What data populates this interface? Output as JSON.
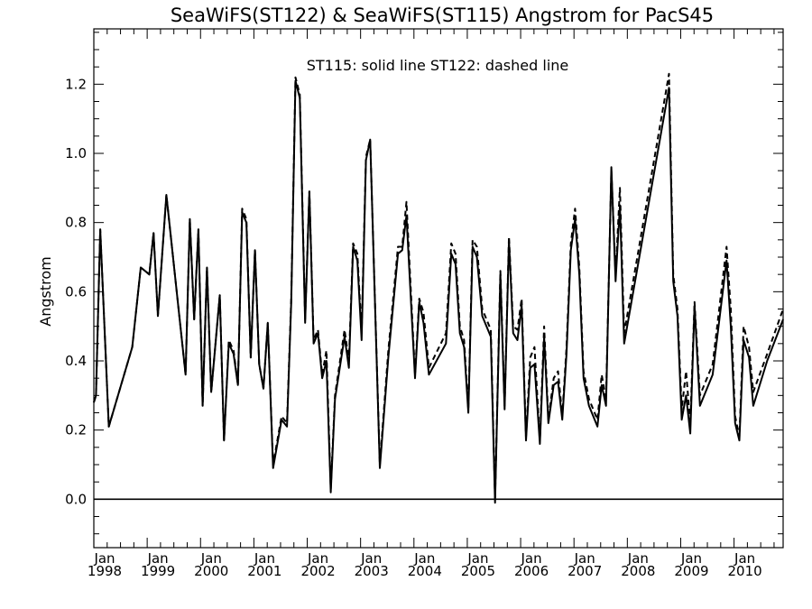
{
  "chart_data": {
    "type": "line",
    "title": "SeaWiFS(ST122) & SeaWiFS(ST115)  Angstrom for PacS45",
    "annotation": "ST115: solid line   ST122: dashed line",
    "ylabel": "Angstrom",
    "xlabel": "",
    "xlim": [
      1998.0,
      2010.92
    ],
    "ylim": [
      -0.14,
      1.36
    ],
    "grid": false,
    "y_ticks": [
      0.0,
      0.2,
      0.4,
      0.6,
      0.8,
      1.0,
      1.2
    ],
    "y_tick_labels": [
      "0.0",
      "0.2",
      "0.4",
      "0.6",
      "0.8",
      "1.0",
      "1.2"
    ],
    "x_ticks": [
      1998,
      1999,
      2000,
      2001,
      2002,
      2003,
      2004,
      2005,
      2006,
      2007,
      2008,
      2009,
      2010
    ],
    "x_tick_labels": [
      {
        "month": "Jan",
        "year": "1998"
      },
      {
        "month": "Jan",
        "year": "1999"
      },
      {
        "month": "Jan",
        "year": "2000"
      },
      {
        "month": "Jan",
        "year": "2001"
      },
      {
        "month": "Jan",
        "year": "2002"
      },
      {
        "month": "Jan",
        "year": "2003"
      },
      {
        "month": "Jan",
        "year": "2004"
      },
      {
        "month": "Jan",
        "year": "2005"
      },
      {
        "month": "Jan",
        "year": "2006"
      },
      {
        "month": "Jan",
        "year": "2007"
      },
      {
        "month": "Jan",
        "year": "2008"
      },
      {
        "month": "Jan",
        "year": "2009"
      },
      {
        "month": "Jan",
        "year": "2010"
      }
    ],
    "reference_line_y": 0.0,
    "series": [
      {
        "style": "solid",
        "x": [
          1998.0,
          1998.04,
          1998.12,
          1998.28,
          1998.72,
          1998.88,
          1998.96,
          1999.04,
          1999.12,
          1999.2,
          1999.36,
          1999.72,
          1999.8,
          1999.88,
          1999.96,
          2000.04,
          2000.12,
          2000.2,
          2000.36,
          2000.44,
          2000.53,
          2000.62,
          2000.7,
          2000.78,
          2000.86,
          2000.94,
          2001.02,
          2001.1,
          2001.18,
          2001.26,
          2001.36,
          2001.52,
          2001.62,
          2001.7,
          2001.78,
          2001.86,
          2001.96,
          2002.04,
          2002.12,
          2002.2,
          2002.28,
          2002.36,
          2002.44,
          2002.52,
          2002.7,
          2002.78,
          2002.86,
          2002.94,
          2003.02,
          2003.1,
          2003.18,
          2003.36,
          2003.52,
          2003.7,
          2003.78,
          2003.86,
          2004.02,
          2004.1,
          2004.18,
          2004.28,
          2004.6,
          2004.7,
          2004.78,
          2004.86,
          2004.94,
          2005.02,
          2005.1,
          2005.18,
          2005.28,
          2005.44,
          2005.52,
          2005.62,
          2005.7,
          2005.78,
          2005.86,
          2005.94,
          2006.02,
          2006.1,
          2006.18,
          2006.26,
          2006.36,
          2006.44,
          2006.52,
          2006.62,
          2006.7,
          2006.78,
          2006.86,
          2006.94,
          2007.02,
          2007.1,
          2007.18,
          2007.28,
          2007.44,
          2007.52,
          2007.6,
          2007.7,
          2007.78,
          2007.86,
          2007.94,
          2008.78,
          2008.86,
          2008.94,
          2009.02,
          2009.1,
          2009.18,
          2009.26,
          2009.36,
          2009.6,
          2009.86,
          2009.94,
          2010.02,
          2010.1,
          2010.18,
          2010.28,
          2010.36,
          2010.62,
          2010.92
        ],
        "values": [
          0.28,
          0.3,
          0.78,
          0.21,
          0.44,
          0.67,
          0.66,
          0.65,
          0.77,
          0.53,
          0.88,
          0.36,
          0.81,
          0.52,
          0.78,
          0.27,
          0.67,
          0.31,
          0.59,
          0.17,
          0.45,
          0.42,
          0.33,
          0.83,
          0.8,
          0.41,
          0.72,
          0.39,
          0.32,
          0.51,
          0.09,
          0.23,
          0.21,
          0.57,
          1.21,
          1.16,
          0.51,
          0.89,
          0.45,
          0.48,
          0.35,
          0.4,
          0.02,
          0.29,
          0.47,
          0.38,
          0.73,
          0.69,
          0.46,
          0.98,
          1.04,
          0.09,
          0.41,
          0.71,
          0.72,
          0.82,
          0.35,
          0.57,
          0.51,
          0.36,
          0.45,
          0.71,
          0.68,
          0.48,
          0.44,
          0.25,
          0.73,
          0.7,
          0.53,
          0.47,
          -0.01,
          0.65,
          0.26,
          0.75,
          0.48,
          0.46,
          0.56,
          0.17,
          0.38,
          0.39,
          0.16,
          0.47,
          0.22,
          0.33,
          0.34,
          0.23,
          0.42,
          0.72,
          0.81,
          0.65,
          0.35,
          0.27,
          0.21,
          0.33,
          0.27,
          0.96,
          0.63,
          0.85,
          0.45,
          1.19,
          0.63,
          0.53,
          0.23,
          0.3,
          0.19,
          0.56,
          0.27,
          0.36,
          0.69,
          0.5,
          0.22,
          0.17,
          0.46,
          0.41,
          0.27,
          0.4,
          0.52
        ]
      },
      {
        "style": "dashed",
        "x": [
          1998.0,
          1998.04,
          1998.12,
          1998.28,
          1998.72,
          1998.88,
          1998.96,
          1999.04,
          1999.12,
          1999.2,
          1999.36,
          1999.72,
          1999.8,
          1999.88,
          1999.96,
          2000.04,
          2000.12,
          2000.2,
          2000.36,
          2000.44,
          2000.53,
          2000.62,
          2000.7,
          2000.78,
          2000.86,
          2000.94,
          2001.02,
          2001.1,
          2001.18,
          2001.26,
          2001.36,
          2001.52,
          2001.62,
          2001.7,
          2001.78,
          2001.86,
          2001.96,
          2002.04,
          2002.12,
          2002.2,
          2002.28,
          2002.36,
          2002.44,
          2002.52,
          2002.7,
          2002.78,
          2002.86,
          2002.94,
          2003.02,
          2003.1,
          2003.18,
          2003.36,
          2003.52,
          2003.7,
          2003.78,
          2003.86,
          2004.02,
          2004.1,
          2004.18,
          2004.28,
          2004.6,
          2004.7,
          2004.78,
          2004.86,
          2004.94,
          2005.02,
          2005.1,
          2005.18,
          2005.28,
          2005.44,
          2005.52,
          2005.62,
          2005.7,
          2005.78,
          2005.86,
          2005.94,
          2006.02,
          2006.1,
          2006.18,
          2006.26,
          2006.36,
          2006.44,
          2006.52,
          2006.62,
          2006.7,
          2006.78,
          2006.86,
          2006.94,
          2007.02,
          2007.1,
          2007.18,
          2007.28,
          2007.44,
          2007.52,
          2007.6,
          2007.7,
          2007.78,
          2007.86,
          2007.94,
          2008.78,
          2008.86,
          2008.94,
          2009.02,
          2009.1,
          2009.18,
          2009.26,
          2009.36,
          2009.6,
          2009.86,
          2009.94,
          2010.02,
          2010.1,
          2010.18,
          2010.28,
          2010.36,
          2010.62,
          2010.92
        ],
        "values": [
          0.28,
          0.3,
          0.78,
          0.21,
          0.44,
          0.67,
          0.66,
          0.65,
          0.77,
          0.53,
          0.88,
          0.36,
          0.81,
          0.52,
          0.78,
          0.27,
          0.67,
          0.31,
          0.59,
          0.17,
          0.46,
          0.43,
          0.33,
          0.84,
          0.81,
          0.41,
          0.72,
          0.39,
          0.32,
          0.51,
          0.1,
          0.24,
          0.22,
          0.58,
          1.22,
          1.17,
          0.52,
          0.89,
          0.46,
          0.49,
          0.36,
          0.43,
          0.03,
          0.3,
          0.49,
          0.4,
          0.74,
          0.71,
          0.48,
          0.99,
          1.04,
          0.1,
          0.43,
          0.73,
          0.73,
          0.86,
          0.36,
          0.58,
          0.54,
          0.38,
          0.48,
          0.74,
          0.71,
          0.5,
          0.46,
          0.26,
          0.75,
          0.73,
          0.55,
          0.49,
          0.0,
          0.66,
          0.27,
          0.76,
          0.5,
          0.49,
          0.58,
          0.18,
          0.41,
          0.44,
          0.17,
          0.5,
          0.23,
          0.35,
          0.37,
          0.24,
          0.44,
          0.74,
          0.84,
          0.67,
          0.37,
          0.29,
          0.23,
          0.36,
          0.29,
          0.95,
          0.65,
          0.9,
          0.48,
          1.23,
          0.65,
          0.55,
          0.26,
          0.37,
          0.22,
          0.57,
          0.3,
          0.39,
          0.73,
          0.55,
          0.24,
          0.18,
          0.5,
          0.44,
          0.31,
          0.42,
          0.55
        ]
      }
    ]
  }
}
